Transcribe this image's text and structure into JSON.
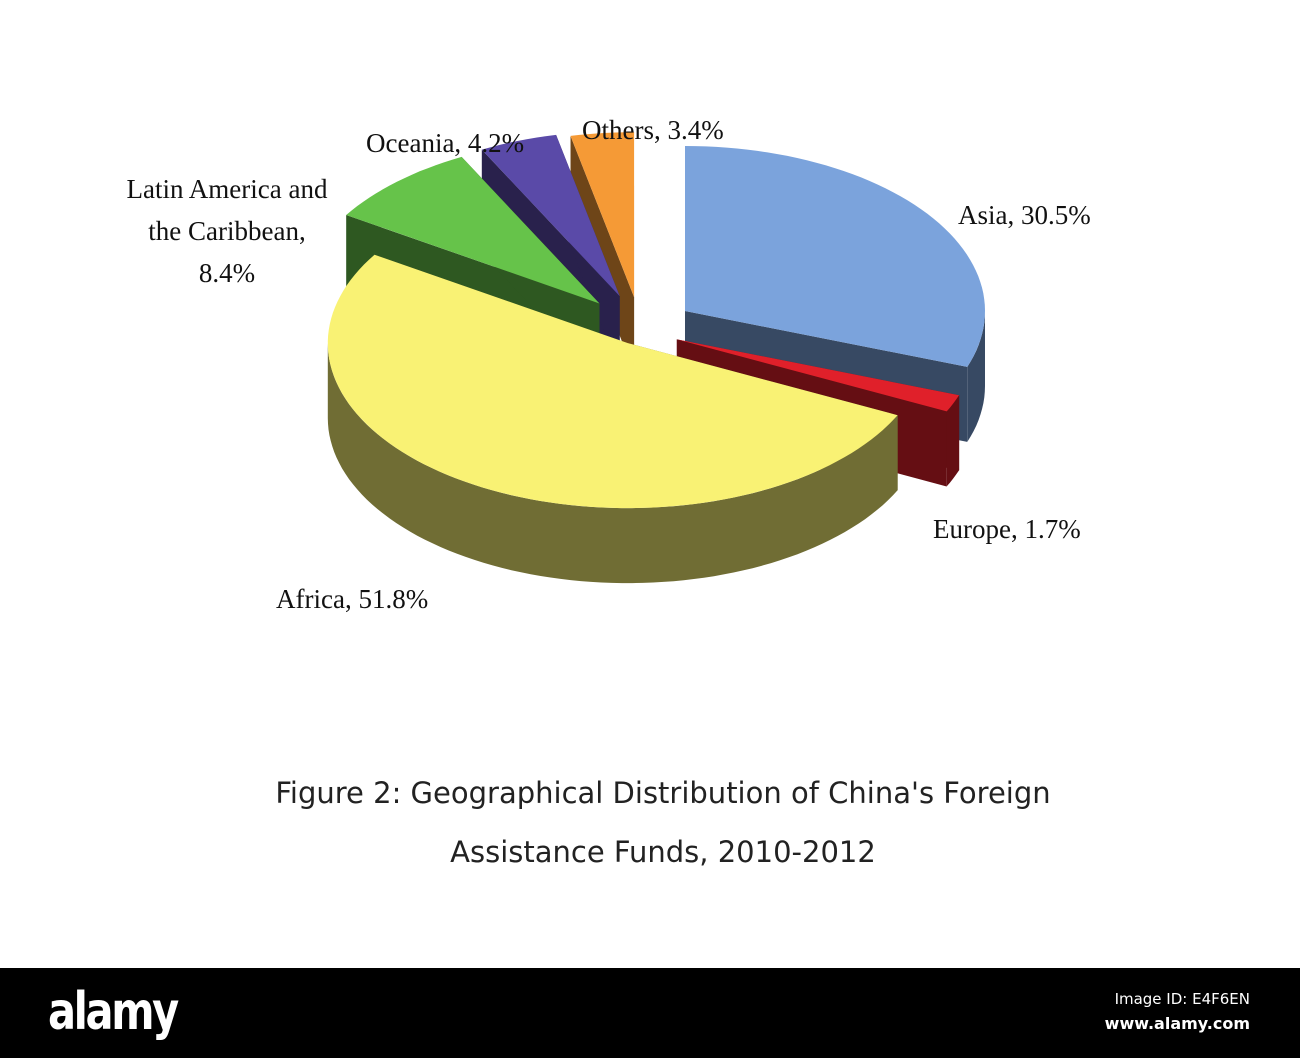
{
  "chart_data": {
    "type": "pie",
    "style": "3d-exploded",
    "categories": [
      "Asia",
      "Europe",
      "Africa",
      "Latin America and the Caribbean",
      "Oceania",
      "Others"
    ],
    "values": [
      30.5,
      1.7,
      51.8,
      8.4,
      4.2,
      3.4
    ],
    "data_labels": [
      "Asia, 30.5%",
      "Europe, 1.7%",
      "Africa, 51.8%",
      "Latin America and the Caribbean, 8.4%",
      "Oceania, 4.2%",
      "Others, 3.4%"
    ],
    "label_lines": {
      "latin": [
        "Latin America and",
        "the Caribbean,",
        "8.4%"
      ]
    },
    "colors": {
      "Asia": "#7ba3dc",
      "Europe": "#e0202a",
      "Africa": "#f9f274",
      "Latin America and the Caribbean": "#66c34a",
      "Oceania": "#5a4aa8",
      "Others": "#f59a36"
    },
    "title": "Figure 2: Geographical Distribution of China's Foreign Assistance Funds, 2010-2012",
    "title_lines": [
      "Figure 2: Geographical Distribution of China's Foreign",
      "Assistance Funds, 2010-2012"
    ]
  },
  "footer": {
    "logo": "alamy",
    "image_id": "Image ID: E4F6EN",
    "site": "www.alamy.com"
  }
}
